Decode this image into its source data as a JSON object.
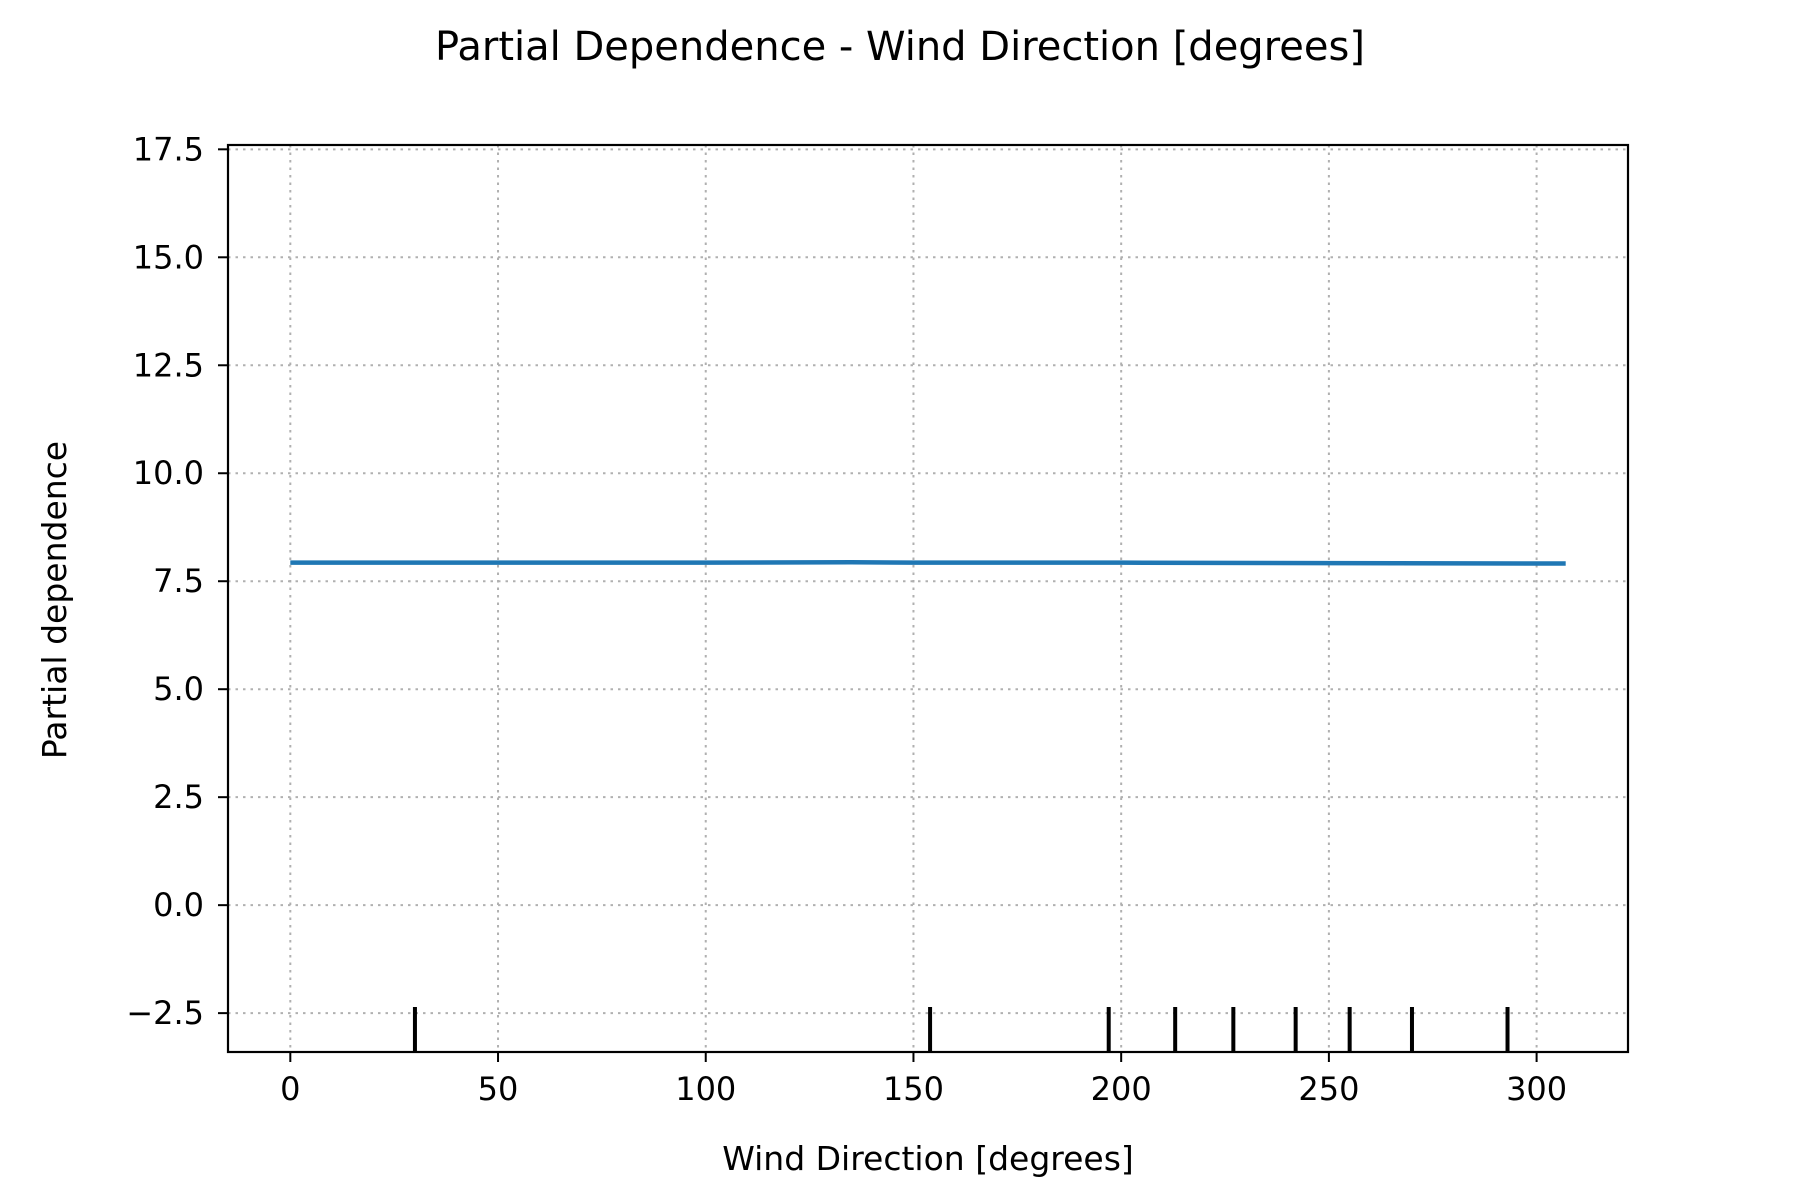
{
  "chart_data": {
    "type": "line",
    "title": "Partial Dependence - Wind Direction [degrees]",
    "xlabel": "Wind Direction [degrees]",
    "ylabel": "Partial dependence",
    "xlim": [
      -15,
      322
    ],
    "ylim": [
      -3.4,
      17.6
    ],
    "xticks": [
      0,
      50,
      100,
      150,
      200,
      250,
      300
    ],
    "xtick_labels": [
      "0",
      "50",
      "100",
      "150",
      "200",
      "250",
      "300"
    ],
    "yticks": [
      -2.5,
      0.0,
      2.5,
      5.0,
      7.5,
      10.0,
      12.5,
      15.0,
      17.5
    ],
    "ytick_labels": [
      "−2.5",
      "0.0",
      "2.5",
      "5.0",
      "7.5",
      "10.0",
      "12.5",
      "15.0",
      "17.5"
    ],
    "grid": true,
    "series": [
      {
        "color": "#1f77b4",
        "x": [
          0,
          50,
          100,
          135,
          150,
          200,
          250,
          300,
          307
        ],
        "y": [
          7.93,
          7.93,
          7.93,
          7.94,
          7.93,
          7.93,
          7.92,
          7.91,
          7.91
        ]
      }
    ],
    "deciles": [
      30,
      154,
      197,
      213,
      227,
      242,
      255,
      270,
      293
    ],
    "colors": {
      "line": "#1f77b4",
      "grid": "#b0b0b0",
      "axes": "#000000",
      "deciles": "#000000"
    }
  }
}
